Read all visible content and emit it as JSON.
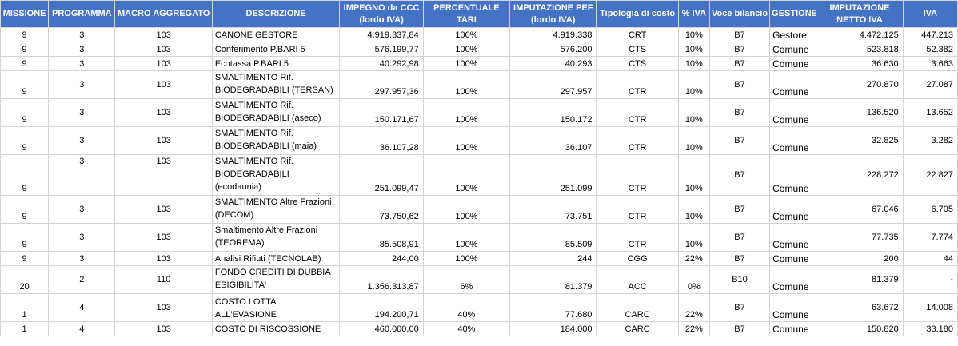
{
  "headers": {
    "missione": "MISSIONE",
    "programma": "PROGRAMMA",
    "macro": "MACRO AGGREGATO",
    "descrizione": "DESCRIZIONE",
    "impegno_l1": "IMPEGNO da CCC",
    "impegno_l2": "(lordo IVA)",
    "percentuale": "PERCENTUALE TARI",
    "pef_l1": "IMPUTAZIONE PEF",
    "pef_l2": "(lordo IVA)",
    "tipologia": "Tipologia di costo",
    "piva": "% IVA",
    "voce": "Voce bilancio",
    "gestione": "GESTIONE",
    "netto_l1": "IMPUTAZIONE",
    "netto_l2": "NETTO IVA",
    "iva": "IVA"
  },
  "rows": [
    {
      "missione": "9",
      "programma": "3",
      "macro": "103",
      "descrizione": "CANONE GESTORE",
      "impegno": "4.919.337,84",
      "percentuale": "100%",
      "pef": "4.919.338",
      "tipologia": "CRT",
      "piva": "10%",
      "voce": "B7",
      "gestione": "Gestore",
      "netto": "4.472.125",
      "iva": "447.213"
    },
    {
      "missione": "9",
      "programma": "3",
      "macro": "103",
      "descrizione": "Conferimento P.BARI 5",
      "impegno": "576.199,77",
      "percentuale": "100%",
      "pef": "576.200",
      "tipologia": "CTS",
      "piva": "10%",
      "voce": "B7",
      "gestione": "Comune",
      "netto": "523.818",
      "iva": "52.382"
    },
    {
      "missione": "9",
      "programma": "3",
      "macro": "103",
      "descrizione": "Ecotassa P.BARI 5",
      "impegno": "40.292,98",
      "percentuale": "100%",
      "pef": "40.293",
      "tipologia": "CTS",
      "piva": "10%",
      "voce": "B7",
      "gestione": "Comune",
      "netto": "36.630",
      "iva": "3.663"
    },
    {
      "missione": "9",
      "programma": "3",
      "macro": "103",
      "descrizione": "SMALTIMENTO Rif. BIODEGRADABILI (TERSAN)",
      "impegno": "297.957,36",
      "percentuale": "100%",
      "pef": "297.957",
      "tipologia": "CTR",
      "piva": "10%",
      "voce": "B7",
      "gestione": "Comune",
      "netto": "270.870",
      "iva": "27.087"
    },
    {
      "missione": "9",
      "programma": "3",
      "macro": "103",
      "descrizione": "SMALTIMENTO Rif. BIODEGRADABILI (aseco)",
      "impegno": "150.171,67",
      "percentuale": "100%",
      "pef": "150.172",
      "tipologia": "CTR",
      "piva": "10%",
      "voce": "B7",
      "gestione": "Comune",
      "netto": "136.520",
      "iva": "13.652"
    },
    {
      "missione": "9",
      "programma": "3",
      "macro": "103",
      "descrizione": "SMALTIMENTO Rif. BIODEGRADABILI (maia)",
      "impegno": "36.107,28",
      "percentuale": "100%",
      "pef": "36.107",
      "tipologia": "CTR",
      "piva": "10%",
      "voce": "B7",
      "gestione": "Comune",
      "netto": "32.825",
      "iva": "3.282"
    },
    {
      "missione": "9",
      "programma": "3",
      "macro": "103",
      "descrizione": "SMALTIMENTO Rif. BIODEGRADABILI (ecodaunia)",
      "impegno": "251.099,47",
      "percentuale": "100%",
      "pef": "251.099",
      "tipologia": "CTR",
      "piva": "10%",
      "voce": "B7",
      "gestione": "Comune",
      "netto": "228.272",
      "iva": "22.827"
    },
    {
      "missione": "9",
      "programma": "3",
      "macro": "103",
      "descrizione": "SMALTIMENTO Altre Frazioni (DECOM)",
      "impegno": "73.750,62",
      "percentuale": "100%",
      "pef": "73.751",
      "tipologia": "CTR",
      "piva": "10%",
      "voce": "B7",
      "gestione": "Comune",
      "netto": "67.046",
      "iva": "6.705"
    },
    {
      "missione": "9",
      "programma": "3",
      "macro": "103",
      "descrizione": "Smaltimento Altre Frazioni (TEOREMA)",
      "impegno": "85.508,91",
      "percentuale": "100%",
      "pef": "85.509",
      "tipologia": "CTR",
      "piva": "10%",
      "voce": "B7",
      "gestione": "Comune",
      "netto": "77.735",
      "iva": "7.774"
    },
    {
      "missione": "9",
      "programma": "3",
      "macro": "103",
      "descrizione": "Analisi Rifiuti (TECNOLAB)",
      "impegno": "244,00",
      "percentuale": "100%",
      "pef": "244",
      "tipologia": "CGG",
      "piva": "22%",
      "voce": "B7",
      "gestione": "Comune",
      "netto": "200",
      "iva": "44"
    },
    {
      "missione": "20",
      "programma": "2",
      "macro": "110",
      "descrizione": "FONDO CREDITI DI DUBBIA ESIGIBILITA'",
      "impegno": "1.356.313,87",
      "percentuale": "6%",
      "pef": "81.379",
      "tipologia": "ACC",
      "piva": "0%",
      "voce": "B10",
      "gestione": "Comune",
      "netto": "81.379",
      "iva": "-"
    },
    {
      "missione": "1",
      "programma": "4",
      "macro": "103",
      "descrizione": "COSTO LOTTA ALL'EVASIONE",
      "impegno": "194.200,71",
      "percentuale": "40%",
      "pef": "77.680",
      "tipologia": "CARC",
      "piva": "22%",
      "voce": "B7",
      "gestione": "Comune",
      "netto": "63.672",
      "iva": "14.008"
    },
    {
      "missione": "1",
      "programma": "4",
      "macro": "103",
      "descrizione": "COSTO DI RISCOSSIONE",
      "impegno": "460.000,00",
      "percentuale": "40%",
      "pef": "184.000",
      "tipologia": "CARC",
      "piva": "22%",
      "voce": "B7",
      "gestione": "Comune",
      "netto": "150.820",
      "iva": "33.180"
    }
  ]
}
